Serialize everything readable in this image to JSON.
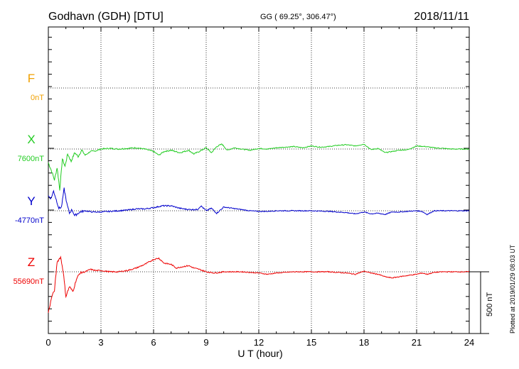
{
  "header": {
    "station": "Godhavn (GDH)  [DTU]",
    "coords": "GG ( 69.25°, 306.47°)",
    "date": "2018/11/11"
  },
  "side_note": "Plotted at 2019/01/29 08:03 UT",
  "colors": {
    "F": "#f0a000",
    "X": "#22cc22",
    "Y": "#0000cc",
    "Z": "#ee0000"
  },
  "chart_data": {
    "type": "line",
    "xlabel": "U T (hour)",
    "xlim": [
      0,
      24
    ],
    "xticks": [
      "0",
      "3",
      "6",
      "9",
      "12",
      "15",
      "18",
      "21",
      "24"
    ],
    "scale_bar": {
      "value": 500,
      "label": "500 nT"
    },
    "series": [
      {
        "name": "F",
        "baseline_label": "0nT",
        "points": []
      },
      {
        "name": "X",
        "baseline_label": "7600nT",
        "points": [
          [
            0.0,
            -110
          ],
          [
            0.2,
            -185
          ],
          [
            0.35,
            -250
          ],
          [
            0.5,
            -150
          ],
          [
            0.65,
            -330
          ],
          [
            0.8,
            -80
          ],
          [
            0.95,
            -140
          ],
          [
            1.1,
            -40
          ],
          [
            1.3,
            -100
          ],
          [
            1.5,
            -30
          ],
          [
            1.7,
            -60
          ],
          [
            1.9,
            -10
          ],
          [
            2.1,
            -50
          ],
          [
            2.4,
            -20
          ],
          [
            2.7,
            -15
          ],
          [
            3.0,
            0
          ],
          [
            3.5,
            5
          ],
          [
            4.0,
            0
          ],
          [
            4.5,
            5
          ],
          [
            5.0,
            10
          ],
          [
            5.5,
            0
          ],
          [
            6.0,
            -20
          ],
          [
            6.3,
            -50
          ],
          [
            6.6,
            -20
          ],
          [
            7.0,
            -10
          ],
          [
            7.5,
            -30
          ],
          [
            8.0,
            -10
          ],
          [
            8.3,
            -40
          ],
          [
            8.6,
            -20
          ],
          [
            9.0,
            10
          ],
          [
            9.3,
            -30
          ],
          [
            9.6,
            20
          ],
          [
            9.9,
            40
          ],
          [
            10.2,
            -10
          ],
          [
            10.6,
            10
          ],
          [
            11.0,
            0
          ],
          [
            11.5,
            -10
          ],
          [
            12.0,
            5
          ],
          [
            12.5,
            0
          ],
          [
            13.0,
            10
          ],
          [
            13.5,
            15
          ],
          [
            14.0,
            20
          ],
          [
            14.5,
            10
          ],
          [
            15.0,
            25
          ],
          [
            15.5,
            15
          ],
          [
            16.0,
            20
          ],
          [
            16.5,
            30
          ],
          [
            17.0,
            35
          ],
          [
            17.5,
            25
          ],
          [
            18.0,
            40
          ],
          [
            18.4,
            -5
          ],
          [
            18.8,
            5
          ],
          [
            19.2,
            -30
          ],
          [
            19.6,
            -20
          ],
          [
            20.0,
            -10
          ],
          [
            20.5,
            -5
          ],
          [
            21.0,
            25
          ],
          [
            21.5,
            20
          ],
          [
            22.0,
            10
          ],
          [
            22.5,
            5
          ],
          [
            23.0,
            0
          ],
          [
            23.5,
            0
          ],
          [
            24.0,
            0
          ]
        ]
      },
      {
        "name": "Y",
        "baseline_label": "-4770nT",
        "points": [
          [
            0.0,
            120
          ],
          [
            0.15,
            100
          ],
          [
            0.3,
            160
          ],
          [
            0.45,
            90
          ],
          [
            0.6,
            20
          ],
          [
            0.75,
            30
          ],
          [
            0.9,
            180
          ],
          [
            1.05,
            60
          ],
          [
            1.2,
            -20
          ],
          [
            1.35,
            10
          ],
          [
            1.5,
            -40
          ],
          [
            1.8,
            -10
          ],
          [
            2.1,
            0
          ],
          [
            2.5,
            -10
          ],
          [
            3.0,
            -10
          ],
          [
            3.5,
            -5
          ],
          [
            4.0,
            0
          ],
          [
            4.5,
            5
          ],
          [
            5.0,
            15
          ],
          [
            5.5,
            15
          ],
          [
            6.0,
            25
          ],
          [
            6.5,
            40
          ],
          [
            7.0,
            40
          ],
          [
            7.5,
            20
          ],
          [
            8.0,
            10
          ],
          [
            8.5,
            10
          ],
          [
            8.7,
            40
          ],
          [
            9.0,
            0
          ],
          [
            9.3,
            20
          ],
          [
            9.6,
            -20
          ],
          [
            10.0,
            30
          ],
          [
            10.5,
            20
          ],
          [
            11.0,
            10
          ],
          [
            11.5,
            0
          ],
          [
            12.0,
            -5
          ],
          [
            12.5,
            -5
          ],
          [
            13.0,
            0
          ],
          [
            14.0,
            0
          ],
          [
            15.0,
            0
          ],
          [
            16.0,
            -5
          ],
          [
            16.5,
            -10
          ],
          [
            17.0,
            -15
          ],
          [
            17.5,
            -25
          ],
          [
            18.0,
            -10
          ],
          [
            18.4,
            -25
          ],
          [
            18.8,
            -20
          ],
          [
            19.2,
            -30
          ],
          [
            19.6,
            -10
          ],
          [
            20.0,
            -10
          ],
          [
            20.5,
            -5
          ],
          [
            21.0,
            0
          ],
          [
            21.3,
            -5
          ],
          [
            21.6,
            -30
          ],
          [
            22.0,
            0
          ],
          [
            22.5,
            0
          ],
          [
            23.0,
            0
          ],
          [
            24.0,
            0
          ]
        ]
      },
      {
        "name": "Z",
        "baseline_label": "55690nT",
        "points": [
          [
            0.0,
            -330
          ],
          [
            0.2,
            -200
          ],
          [
            0.35,
            -150
          ],
          [
            0.5,
            80
          ],
          [
            0.7,
            120
          ],
          [
            0.85,
            0
          ],
          [
            1.0,
            -200
          ],
          [
            1.2,
            -120
          ],
          [
            1.4,
            -160
          ],
          [
            1.6,
            -60
          ],
          [
            1.8,
            -10
          ],
          [
            2.1,
            0
          ],
          [
            2.4,
            20
          ],
          [
            2.7,
            10
          ],
          [
            3.0,
            10
          ],
          [
            3.5,
            0
          ],
          [
            4.0,
            0
          ],
          [
            4.5,
            10
          ],
          [
            5.0,
            30
          ],
          [
            5.5,
            60
          ],
          [
            6.0,
            100
          ],
          [
            6.3,
            110
          ],
          [
            6.6,
            70
          ],
          [
            7.0,
            60
          ],
          [
            7.3,
            30
          ],
          [
            7.6,
            40
          ],
          [
            8.0,
            50
          ],
          [
            8.3,
            30
          ],
          [
            8.6,
            20
          ],
          [
            9.0,
            0
          ],
          [
            9.5,
            -10
          ],
          [
            10.0,
            0
          ],
          [
            11.0,
            0
          ],
          [
            12.0,
            -10
          ],
          [
            12.5,
            -20
          ],
          [
            13.0,
            -10
          ],
          [
            14.0,
            0
          ],
          [
            15.0,
            0
          ],
          [
            16.0,
            0
          ],
          [
            17.0,
            -10
          ],
          [
            17.5,
            -20
          ],
          [
            18.0,
            5
          ],
          [
            18.4,
            -10
          ],
          [
            18.8,
            -20
          ],
          [
            19.2,
            -40
          ],
          [
            19.6,
            -50
          ],
          [
            20.0,
            -40
          ],
          [
            20.5,
            -30
          ],
          [
            21.0,
            -20
          ],
          [
            21.3,
            -10
          ],
          [
            21.6,
            -20
          ],
          [
            22.0,
            -5
          ],
          [
            22.5,
            0
          ],
          [
            23.0,
            0
          ],
          [
            23.5,
            0
          ],
          [
            24.0,
            0
          ]
        ]
      }
    ]
  }
}
